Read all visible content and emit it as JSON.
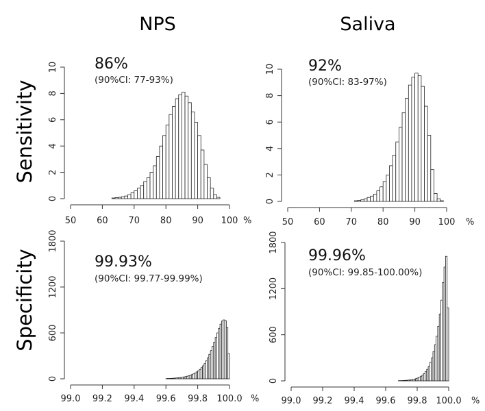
{
  "figure": {
    "col_titles": [
      "NPS",
      "Saliva"
    ],
    "row_titles": [
      "Sensitivity",
      "Specificity"
    ]
  },
  "chart_data": [
    {
      "type": "bar",
      "panel": "NPS sensitivity",
      "title": "86%",
      "subtitle": "(90%CI: 77-93%)",
      "xlabel": "%",
      "ylabel": "",
      "xlim": [
        50,
        100
      ],
      "ylim": [
        0,
        10
      ],
      "xticks": [
        "50",
        "60",
        "70",
        "80",
        "90",
        "100"
      ],
      "yticks": [
        "0",
        "2",
        "4",
        "6",
        "8",
        "10"
      ],
      "bin_start": 63,
      "bin_width": 1,
      "values": [
        0.05,
        0.08,
        0.1,
        0.15,
        0.2,
        0.3,
        0.45,
        0.6,
        0.8,
        1.0,
        1.3,
        1.6,
        2.0,
        2.5,
        3.2,
        4.0,
        4.8,
        5.6,
        6.4,
        7.0,
        7.6,
        7.9,
        8.1,
        7.8,
        7.3,
        6.6,
        5.8,
        4.8,
        3.7,
        2.6,
        1.6,
        0.8,
        0.3,
        0.1
      ]
    },
    {
      "type": "bar",
      "panel": "Saliva sensitivity",
      "title": "92%",
      "subtitle": "(90%CI: 83-97%)",
      "xlabel": "%",
      "ylabel": "",
      "xlim": [
        50,
        100
      ],
      "ylim": [
        0,
        10
      ],
      "xticks": [
        "50",
        "60",
        "70",
        "80",
        "90",
        "100"
      ],
      "yticks": [
        "0",
        "2",
        "4",
        "6",
        "8",
        "10"
      ],
      "bin_start": 71,
      "bin_width": 1,
      "values": [
        0.05,
        0.08,
        0.12,
        0.2,
        0.3,
        0.4,
        0.55,
        0.8,
        1.1,
        1.5,
        2.0,
        2.7,
        3.5,
        4.5,
        5.6,
        6.7,
        7.8,
        8.8,
        9.4,
        9.7,
        9.5,
        8.7,
        7.2,
        5.0,
        2.4,
        0.6,
        0.2,
        0.05
      ]
    },
    {
      "type": "bar",
      "panel": "NPS specificity",
      "title": "99.93%",
      "subtitle": "(90%CI: 99.77-99.99%)",
      "xlabel": "%",
      "ylabel": "",
      "xlim": [
        99.0,
        100.0
      ],
      "ylim": [
        0,
        1800
      ],
      "xticks": [
        "99.0",
        "99.2",
        "99.4",
        "99.6",
        "99.8",
        "100.0"
      ],
      "yticks": [
        "0",
        "600",
        "1200",
        "1800"
      ],
      "bin_start": 99.6,
      "bin_width": 0.01,
      "values": [
        3,
        4,
        5,
        6,
        7,
        9,
        11,
        13,
        15,
        18,
        21,
        25,
        29,
        34,
        40,
        47,
        55,
        65,
        76,
        90,
        105,
        123,
        145,
        170,
        200,
        235,
        275,
        320,
        370,
        425,
        480,
        540,
        600,
        660,
        715,
        755,
        770,
        760,
        670,
        330
      ]
    },
    {
      "type": "bar",
      "panel": "Saliva specificity",
      "title": "99.96%",
      "subtitle": "(90%CI: 99.85-100.00%)",
      "xlabel": "%",
      "ylabel": "",
      "xlim": [
        99.0,
        100.0
      ],
      "ylim": [
        0,
        1800
      ],
      "xticks": [
        "99.0",
        "99.2",
        "99.4",
        "99.6",
        "99.8",
        "100.0"
      ],
      "yticks": [
        "0",
        "600",
        "1200",
        "1800"
      ],
      "bin_start": 99.68,
      "bin_width": 0.01,
      "values": [
        2,
        3,
        4,
        5,
        6,
        8,
        10,
        12,
        15,
        19,
        24,
        30,
        38,
        48,
        60,
        76,
        95,
        120,
        150,
        190,
        240,
        300,
        380,
        470,
        580,
        710,
        870,
        1050,
        1280,
        1480,
        1620,
        950
      ]
    }
  ]
}
